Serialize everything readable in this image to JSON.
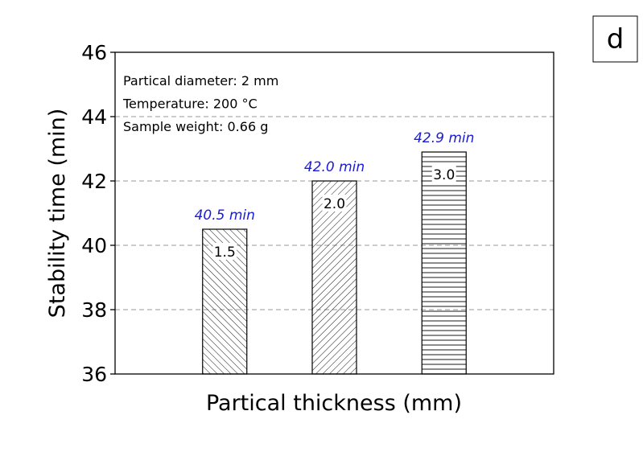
{
  "panel_label": "d",
  "chart_data": {
    "type": "bar",
    "title": "",
    "xlabel": "Partical thickness (mm)",
    "ylabel": "Stability time (min)",
    "ylim": [
      36,
      46
    ],
    "yticks": [
      "36",
      "38",
      "40",
      "42",
      "44",
      "46"
    ],
    "grid": "horizontal dashed",
    "categories": [
      "1.5",
      "2.0",
      "3.0"
    ],
    "values": [
      40.5,
      42.0,
      42.9
    ],
    "value_labels": [
      "40.5 min",
      "42.0 min",
      "42.9 min"
    ],
    "patterns": [
      "backslash-hatch",
      "slash-hatch",
      "horizontal-hatch"
    ],
    "annotations": [
      "Partical diameter: 2 mm",
      "Temperature: 200 °C",
      "Sample weight: 0.66 g"
    ],
    "value_label_color": "#1a1adc"
  }
}
